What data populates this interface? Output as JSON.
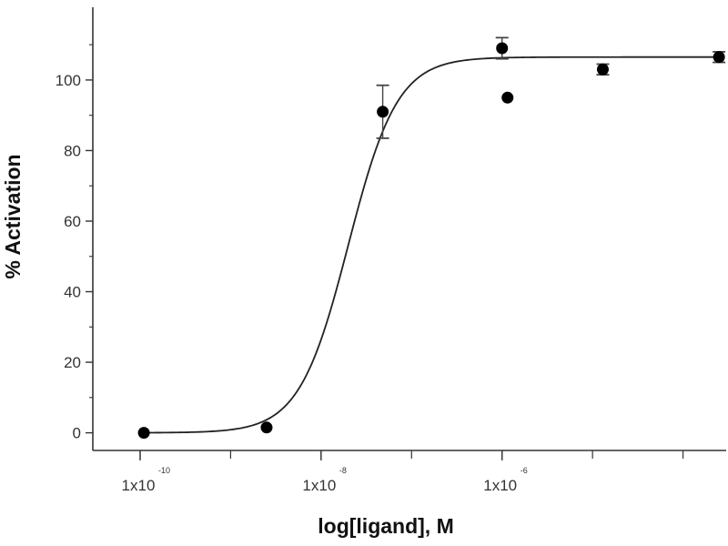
{
  "chart_data": {
    "type": "scatter",
    "xlabel": "log[ligand], M",
    "ylabel": "% Activation",
    "x_scale": "log",
    "xlim": [
      3e-11,
      0.0003
    ],
    "ylim": [
      -5,
      117
    ],
    "x_ticks": [
      {
        "value": 1e-10,
        "base": "1x10",
        "exponent": "-10"
      },
      {
        "value": 1e-08,
        "base": "1x10",
        "exponent": "-8"
      },
      {
        "value": 1e-06,
        "base": "1x10",
        "exponent": "-6"
      }
    ],
    "y_ticks": [
      {
        "value": 0,
        "label": "0"
      },
      {
        "value": 20,
        "label": "20"
      },
      {
        "value": 40,
        "label": "40"
      },
      {
        "value": 60,
        "label": "60"
      },
      {
        "value": 80,
        "label": "80"
      },
      {
        "value": 100,
        "label": "100"
      }
    ],
    "points": [
      {
        "x": 1.1e-10,
        "y": 0,
        "error": 0
      },
      {
        "x": 2.5e-09,
        "y": 1.5,
        "error": 0
      },
      {
        "x": 4.8e-08,
        "y": 91,
        "error": 7.5
      },
      {
        "x": 1e-06,
        "y": 109,
        "error": 3
      },
      {
        "x": 1.15e-06,
        "y": 95,
        "error": 0
      },
      {
        "x": 1.3e-05,
        "y": 103,
        "error": 1.5
      },
      {
        "x": 0.00025,
        "y": 106.5,
        "error": 1.5
      }
    ],
    "fit_curve": {
      "bottom": 0,
      "top": 106.5,
      "ec50": 2e-08,
      "hill": 1.6
    },
    "grid": false,
    "colors": {
      "points": "#000000",
      "curve": "#222222",
      "axes": "#333333"
    }
  }
}
